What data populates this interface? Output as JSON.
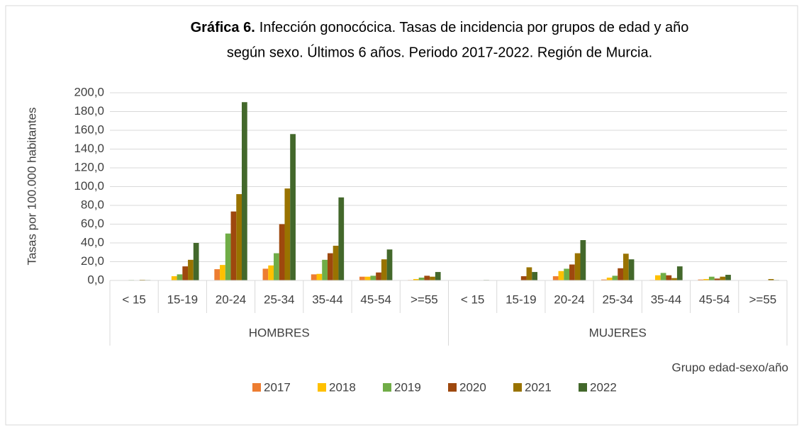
{
  "chart_data": {
    "type": "bar",
    "title_lead": "Gráfica 6.",
    "title_lines": [
      "Infección gonocócica. Tasas de incidencia por grupos de edad y año",
      "según sexo. Últimos 6 años. Periodo 2017-2022. Región de Murcia."
    ],
    "y_label": "Tasas por 100.000 habitantes",
    "x_label": "Grupo edad-sexo/año",
    "groups": [
      "HOMBRES",
      "MUJERES"
    ],
    "categories": [
      "< 15",
      "15-19",
      "20-24",
      "25-34",
      "35-44",
      "45-54",
      ">=55",
      "< 15",
      "15-19",
      "20-24",
      "25-34",
      "35-44",
      "45-54",
      ">=55"
    ],
    "series": [
      {
        "name": "2017",
        "color": "#ed7d31",
        "values": [
          0.3,
          0,
          12,
          12.5,
          6.5,
          4,
          0.5,
          0,
          0,
          4.5,
          1,
          0.5,
          1,
          0
        ]
      },
      {
        "name": "2018",
        "color": "#ffc000",
        "values": [
          0,
          4.5,
          16.5,
          16,
          7,
          4,
          1.5,
          0,
          0,
          10,
          3,
          5.5,
          1.5,
          0
        ]
      },
      {
        "name": "2019",
        "color": "#70ad47",
        "values": [
          0.5,
          6.5,
          50,
          29,
          22,
          5,
          3,
          0,
          0,
          12.5,
          5,
          8,
          4,
          0
        ]
      },
      {
        "name": "2020",
        "color": "#9e480e",
        "values": [
          0,
          15,
          73.5,
          60,
          29,
          8.5,
          5,
          0,
          4.5,
          17,
          13,
          5.5,
          2,
          0
        ]
      },
      {
        "name": "2021",
        "color": "#997300",
        "values": [
          0.7,
          22,
          92,
          98,
          37,
          22.5,
          4,
          0,
          14,
          29,
          28.5,
          2.5,
          4,
          1.5
        ]
      },
      {
        "name": "2022",
        "color": "#43682b",
        "values": [
          0.5,
          40,
          190,
          156,
          88.5,
          33,
          9,
          0.5,
          9,
          43,
          22.5,
          15,
          6,
          0.5
        ]
      }
    ],
    "ylim": [
      0,
      200
    ],
    "yticks": [
      {
        "value": 0,
        "label": "0,0"
      },
      {
        "value": 20,
        "label": "20,0"
      },
      {
        "value": 40,
        "label": "40,0"
      },
      {
        "value": 60,
        "label": "60,0"
      },
      {
        "value": 80,
        "label": "80,0"
      },
      {
        "value": 100,
        "label": "100,0"
      },
      {
        "value": 120,
        "label": "120,0"
      },
      {
        "value": 140,
        "label": "140,0"
      },
      {
        "value": 160,
        "label": "160,0"
      },
      {
        "value": 180,
        "label": "180,0"
      },
      {
        "value": 200,
        "label": "200,0"
      }
    ],
    "grid": true,
    "legend": "bottom"
  }
}
